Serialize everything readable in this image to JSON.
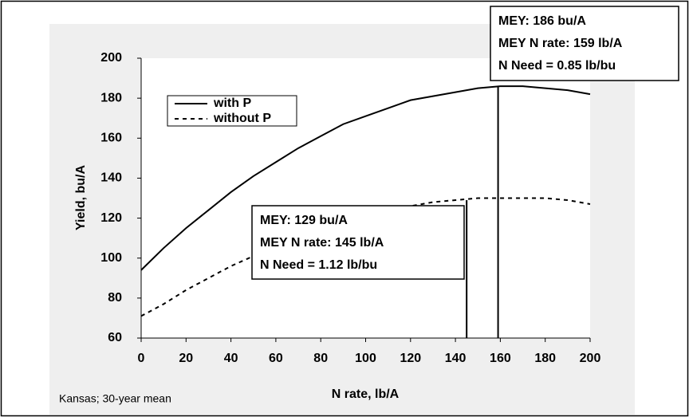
{
  "chart_data": {
    "type": "line",
    "x_label": "N rate, lb/A",
    "y_label": "Yield, bu/A",
    "note": "Kansas; 30-year mean",
    "x": [
      0,
      10,
      20,
      30,
      40,
      50,
      60,
      70,
      80,
      90,
      100,
      110,
      120,
      130,
      140,
      150,
      160,
      170,
      180,
      190,
      200
    ],
    "series": [
      {
        "name": "with P",
        "color": "#000000",
        "line_style": "solid",
        "values": [
          94,
          105,
          115,
          124,
          133,
          141,
          148,
          155,
          161,
          167,
          171,
          175,
          179,
          181,
          183,
          185,
          186,
          186,
          185,
          184,
          182
        ]
      },
      {
        "name": "without P",
        "color": "#000000",
        "line_style": "dashed",
        "values": [
          71,
          77,
          84,
          90,
          96,
          101,
          106,
          110,
          114,
          118,
          121,
          124,
          126,
          128,
          129,
          130,
          130,
          130,
          130,
          129,
          127
        ]
      }
    ],
    "markers": [
      {
        "x": 145,
        "y": 129
      },
      {
        "x": 159,
        "y": 186
      }
    ],
    "annotations": [
      [
        "MEY: 129 bu/A",
        "MEY N rate:  145 lb/A",
        "N Need = 1.12  lb/bu"
      ],
      [
        "MEY: 186 bu/A",
        "MEY N rate: 159 lb/A",
        "N Need = 0.85 lb/bu"
      ]
    ],
    "xlim": [
      0,
      200
    ],
    "xticks": [
      0,
      20,
      40,
      60,
      80,
      100,
      120,
      140,
      160,
      180,
      200
    ],
    "ylim": [
      60,
      200
    ],
    "yticks": [
      60,
      80,
      100,
      120,
      140,
      160,
      180,
      200
    ],
    "legend": "upper left",
    "grid": false
  }
}
